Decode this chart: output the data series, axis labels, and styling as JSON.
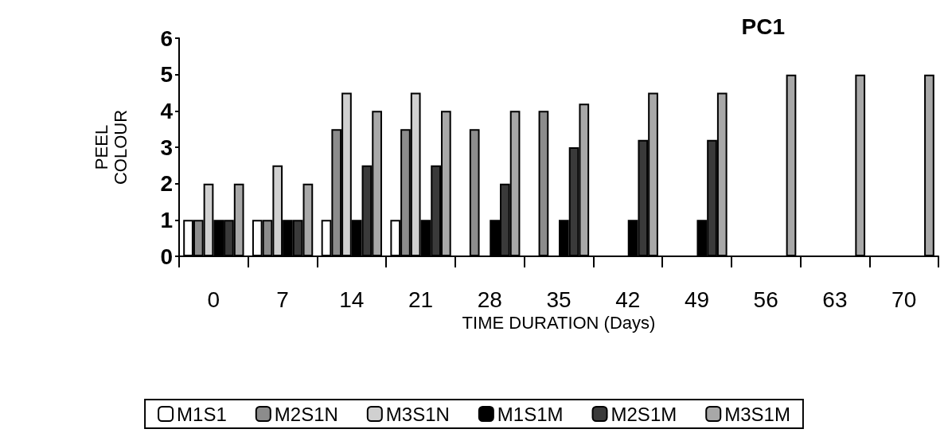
{
  "chart_data": {
    "type": "bar",
    "title": "PC1",
    "xlabel": "TIME DURATION (Days)",
    "ylabel": "PEEL COLOUR",
    "categories": [
      "0",
      "7",
      "14",
      "21",
      "28",
      "35",
      "42",
      "49",
      "56",
      "63",
      "70"
    ],
    "series": [
      {
        "name": "M1S1",
        "color": "#ffffff",
        "values": [
          1,
          1,
          1,
          1,
          null,
          null,
          null,
          null,
          null,
          null,
          null
        ]
      },
      {
        "name": "M2S1N",
        "color": "#8c8c8c",
        "values": [
          1,
          1,
          3.5,
          3.5,
          3.5,
          4,
          null,
          null,
          null,
          null,
          null
        ]
      },
      {
        "name": "M3S1N",
        "color": "#d0d0d0",
        "values": [
          2,
          2.5,
          4.5,
          4.5,
          null,
          null,
          null,
          null,
          null,
          null,
          null
        ]
      },
      {
        "name": "M1S1M",
        "color": "#000000",
        "values": [
          1,
          1,
          1,
          1,
          1,
          1,
          1,
          1,
          null,
          null,
          null
        ]
      },
      {
        "name": "M2S1M",
        "color": "#3a3a3a",
        "values": [
          1,
          1,
          2.5,
          2.5,
          2,
          3,
          3.2,
          3.2,
          null,
          null,
          null
        ]
      },
      {
        "name": "M3S1M",
        "color": "#a8a8a8",
        "values": [
          2,
          2,
          4,
          4,
          4,
          4.2,
          4.5,
          4.5,
          5,
          5,
          5
        ]
      }
    ],
    "ylim": [
      0,
      6
    ],
    "yticks": [
      0,
      1,
      2,
      3,
      4,
      5,
      6
    ],
    "grid": false,
    "legend": "bottom"
  }
}
